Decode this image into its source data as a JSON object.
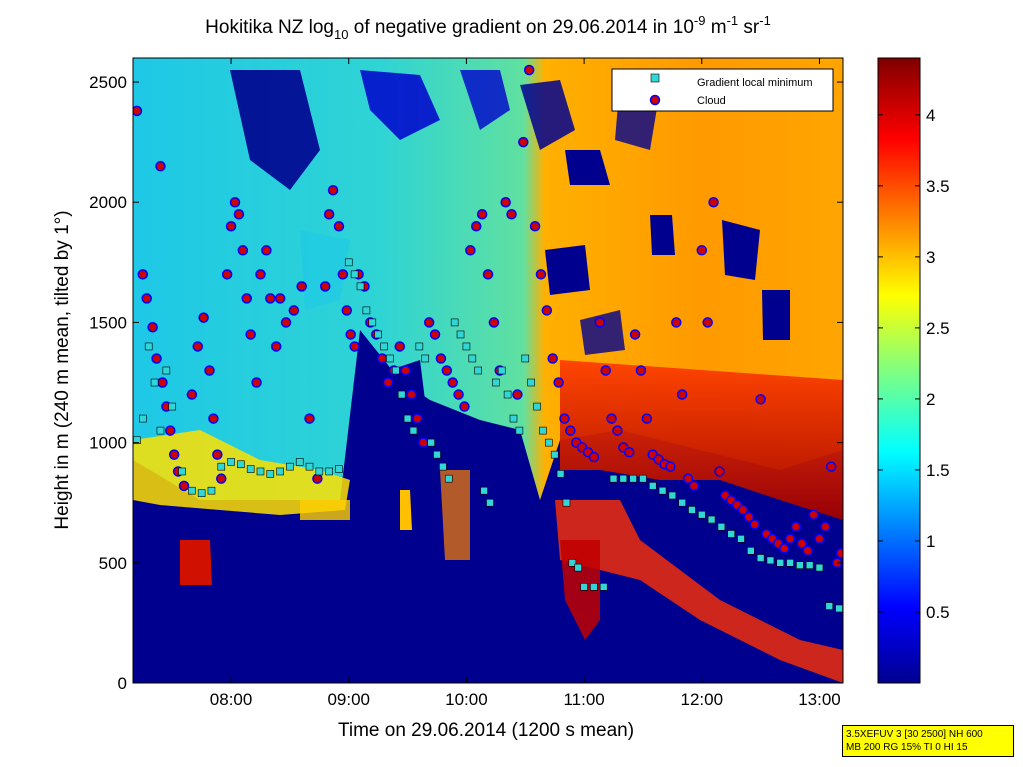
{
  "chart_data": {
    "type": "heatmap",
    "title": {
      "prefix": "Hokitika NZ log",
      "sub": "10",
      "middle": " of negative gradient on 29.06.2014 in 10",
      "sup1": "-9",
      "unit_m": " m",
      "sup2": "-1",
      "unit_sr": " sr",
      "sup3": "-1"
    },
    "xlabel": "Time on 29.06.2014 (1200 s mean)",
    "ylabel": "Height in m (240 m mean, tilted by 1°)",
    "x_range": [
      "07:10",
      "13:12"
    ],
    "x_ticks": [
      "08:00",
      "09:00",
      "10:00",
      "11:00",
      "12:00",
      "13:00"
    ],
    "ylim": [
      0,
      2600
    ],
    "y_ticks": [
      "0",
      "500",
      "1000",
      "1500",
      "2000",
      "2500"
    ],
    "colorbar": {
      "range": [
        0,
        4.4
      ],
      "ticks": [
        "0.5",
        "1",
        "1.5",
        "2",
        "2.5",
        "3",
        "3.5",
        "4"
      ],
      "colormap": "jet"
    },
    "legend": {
      "position": "top-right",
      "entries": [
        {
          "name": "Gradient local minimum",
          "marker": "square",
          "color": "#33d6d6"
        },
        {
          "name": "Cloud",
          "marker": "circle",
          "color": "#cc0000",
          "edge": "#0000ff"
        }
      ]
    },
    "series": [
      {
        "name": "Cloud",
        "points": [
          [
            "07:12",
            2380
          ],
          [
            "07:15",
            1700
          ],
          [
            "07:17",
            1600
          ],
          [
            "07:20",
            1480
          ],
          [
            "07:22",
            1350
          ],
          [
            "07:24",
            2150
          ],
          [
            "07:25",
            1250
          ],
          [
            "07:27",
            1150
          ],
          [
            "07:29",
            1050
          ],
          [
            "07:31",
            950
          ],
          [
            "07:33",
            880
          ],
          [
            "07:36",
            820
          ],
          [
            "07:40",
            1200
          ],
          [
            "07:43",
            1400
          ],
          [
            "07:46",
            1520
          ],
          [
            "07:49",
            1300
          ],
          [
            "07:51",
            1100
          ],
          [
            "07:53",
            950
          ],
          [
            "07:55",
            850
          ],
          [
            "07:58",
            1700
          ],
          [
            "08:00",
            1900
          ],
          [
            "08:02",
            2000
          ],
          [
            "08:04",
            1950
          ],
          [
            "08:06",
            1800
          ],
          [
            "08:08",
            1600
          ],
          [
            "08:10",
            1450
          ],
          [
            "08:13",
            1250
          ],
          [
            "08:15",
            1700
          ],
          [
            "08:18",
            1800
          ],
          [
            "08:20",
            1600
          ],
          [
            "08:23",
            1400
          ],
          [
            "08:25",
            1600
          ],
          [
            "08:28",
            1500
          ],
          [
            "08:32",
            1550
          ],
          [
            "08:36",
            1650
          ],
          [
            "08:40",
            1100
          ],
          [
            "08:44",
            850
          ],
          [
            "08:48",
            1650
          ],
          [
            "08:50",
            1950
          ],
          [
            "08:52",
            2050
          ],
          [
            "08:55",
            1900
          ],
          [
            "08:57",
            1700
          ],
          [
            "08:59",
            1550
          ],
          [
            "09:01",
            1450
          ],
          [
            "09:03",
            1400
          ],
          [
            "09:05",
            1700
          ],
          [
            "09:08",
            1650
          ],
          [
            "09:11",
            1500
          ],
          [
            "09:14",
            1450
          ],
          [
            "09:17",
            1350
          ],
          [
            "09:20",
            1250
          ],
          [
            "09:23",
            1300
          ],
          [
            "09:26",
            1400
          ],
          [
            "09:29",
            1300
          ],
          [
            "09:32",
            1200
          ],
          [
            "09:35",
            1100
          ],
          [
            "09:38",
            1000
          ],
          [
            "09:41",
            1500
          ],
          [
            "09:44",
            1450
          ],
          [
            "09:47",
            1350
          ],
          [
            "09:50",
            1300
          ],
          [
            "09:53",
            1250
          ],
          [
            "09:56",
            1200
          ],
          [
            "09:59",
            1150
          ],
          [
            "10:02",
            1800
          ],
          [
            "10:05",
            1900
          ],
          [
            "10:08",
            1950
          ],
          [
            "10:11",
            1700
          ],
          [
            "10:14",
            1500
          ],
          [
            "10:17",
            1300
          ],
          [
            "10:20",
            2000
          ],
          [
            "10:23",
            1950
          ],
          [
            "10:26",
            1200
          ],
          [
            "10:29",
            2250
          ],
          [
            "10:32",
            2550
          ],
          [
            "10:35",
            1900
          ],
          [
            "10:38",
            1700
          ],
          [
            "10:41",
            1550
          ],
          [
            "10:44",
            1350
          ],
          [
            "10:47",
            1250
          ],
          [
            "10:50",
            1100
          ],
          [
            "10:53",
            1050
          ],
          [
            "10:56",
            1000
          ],
          [
            "10:59",
            980
          ],
          [
            "11:02",
            960
          ],
          [
            "11:05",
            940
          ],
          [
            "11:08",
            1500
          ],
          [
            "11:11",
            1300
          ],
          [
            "11:14",
            1100
          ],
          [
            "11:17",
            1050
          ],
          [
            "11:20",
            980
          ],
          [
            "11:23",
            960
          ],
          [
            "11:26",
            1450
          ],
          [
            "11:29",
            1300
          ],
          [
            "11:32",
            1100
          ],
          [
            "11:35",
            950
          ],
          [
            "11:38",
            930
          ],
          [
            "11:41",
            910
          ],
          [
            "11:44",
            900
          ],
          [
            "11:47",
            1500
          ],
          [
            "11:50",
            1200
          ],
          [
            "11:53",
            850
          ],
          [
            "11:56",
            820
          ],
          [
            "12:00",
            1800
          ],
          [
            "12:03",
            1500
          ],
          [
            "12:06",
            2000
          ],
          [
            "12:09",
            880
          ],
          [
            "12:12",
            780
          ],
          [
            "12:15",
            760
          ],
          [
            "12:18",
            740
          ],
          [
            "12:21",
            720
          ],
          [
            "12:24",
            690
          ],
          [
            "12:27",
            660
          ],
          [
            "12:30",
            1180
          ],
          [
            "12:33",
            620
          ],
          [
            "12:36",
            600
          ],
          [
            "12:39",
            580
          ],
          [
            "12:42",
            560
          ],
          [
            "12:45",
            600
          ],
          [
            "12:48",
            650
          ],
          [
            "12:51",
            580
          ],
          [
            "12:54",
            550
          ],
          [
            "12:57",
            700
          ],
          [
            "13:00",
            600
          ],
          [
            "13:03",
            650
          ],
          [
            "13:06",
            900
          ],
          [
            "13:09",
            500
          ],
          [
            "13:11",
            540
          ]
        ]
      },
      {
        "name": "Gradient local minimum",
        "points": [
          [
            "07:12",
            1010
          ],
          [
            "07:15",
            1100
          ],
          [
            "07:18",
            1400
          ],
          [
            "07:21",
            1250
          ],
          [
            "07:24",
            1050
          ],
          [
            "07:27",
            1300
          ],
          [
            "07:30",
            1150
          ],
          [
            "07:35",
            880
          ],
          [
            "07:40",
            800
          ],
          [
            "07:45",
            790
          ],
          [
            "07:50",
            800
          ],
          [
            "07:55",
            900
          ],
          [
            "08:00",
            920
          ],
          [
            "08:05",
            910
          ],
          [
            "08:10",
            890
          ],
          [
            "08:15",
            880
          ],
          [
            "08:20",
            870
          ],
          [
            "08:25",
            880
          ],
          [
            "08:30",
            900
          ],
          [
            "08:35",
            920
          ],
          [
            "08:40",
            900
          ],
          [
            "08:45",
            880
          ],
          [
            "08:50",
            880
          ],
          [
            "08:55",
            890
          ],
          [
            "09:00",
            1750
          ],
          [
            "09:03",
            1700
          ],
          [
            "09:06",
            1650
          ],
          [
            "09:09",
            1550
          ],
          [
            "09:12",
            1500
          ],
          [
            "09:15",
            1450
          ],
          [
            "09:18",
            1400
          ],
          [
            "09:21",
            1350
          ],
          [
            "09:24",
            1300
          ],
          [
            "09:27",
            1200
          ],
          [
            "09:30",
            1100
          ],
          [
            "09:33",
            1050
          ],
          [
            "09:36",
            1400
          ],
          [
            "09:39",
            1350
          ],
          [
            "09:42",
            1000
          ],
          [
            "09:45",
            950
          ],
          [
            "09:48",
            900
          ],
          [
            "09:51",
            850
          ],
          [
            "09:54",
            1500
          ],
          [
            "09:57",
            1450
          ],
          [
            "10:00",
            1400
          ],
          [
            "10:03",
            1350
          ],
          [
            "10:06",
            1300
          ],
          [
            "10:09",
            800
          ],
          [
            "10:12",
            750
          ],
          [
            "10:15",
            1250
          ],
          [
            "10:18",
            1300
          ],
          [
            "10:21",
            1200
          ],
          [
            "10:24",
            1100
          ],
          [
            "10:27",
            1050
          ],
          [
            "10:30",
            1350
          ],
          [
            "10:33",
            1250
          ],
          [
            "10:36",
            1150
          ],
          [
            "10:39",
            1050
          ],
          [
            "10:42",
            1000
          ],
          [
            "10:45",
            950
          ],
          [
            "10:48",
            870
          ],
          [
            "10:51",
            750
          ],
          [
            "10:54",
            500
          ],
          [
            "10:57",
            480
          ],
          [
            "11:00",
            400
          ],
          [
            "11:05",
            400
          ],
          [
            "11:10",
            400
          ],
          [
            "11:15",
            850
          ],
          [
            "11:20",
            850
          ],
          [
            "11:25",
            850
          ],
          [
            "11:30",
            850
          ],
          [
            "11:35",
            820
          ],
          [
            "11:40",
            800
          ],
          [
            "11:45",
            780
          ],
          [
            "11:50",
            750
          ],
          [
            "11:55",
            720
          ],
          [
            "12:00",
            700
          ],
          [
            "12:05",
            680
          ],
          [
            "12:10",
            650
          ],
          [
            "12:15",
            620
          ],
          [
            "12:20",
            600
          ],
          [
            "12:25",
            550
          ],
          [
            "12:30",
            520
          ],
          [
            "12:35",
            510
          ],
          [
            "12:40",
            500
          ],
          [
            "12:45",
            500
          ],
          [
            "12:50",
            490
          ],
          [
            "12:55",
            490
          ],
          [
            "13:00",
            480
          ],
          [
            "13:05",
            320
          ],
          [
            "13:10",
            310
          ]
        ]
      }
    ]
  },
  "info_box": {
    "line1": "3.5XEFUV 3 [30 2500] NH 600",
    "line2": "MB 200 RG 15% TI 0 HI 15"
  }
}
